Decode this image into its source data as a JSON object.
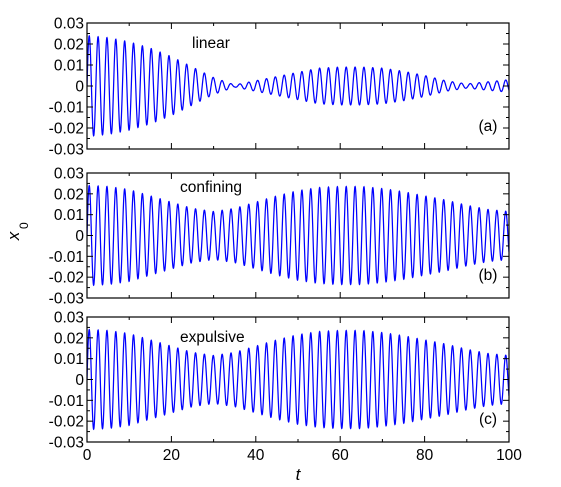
{
  "chart_data": [
    {
      "type": "line",
      "annotation": "linear",
      "panel_label": "(a)",
      "xlim": [
        0,
        100
      ],
      "ylim": [
        -0.03,
        0.03
      ],
      "x_ticks": [
        0,
        20,
        40,
        60,
        80,
        100
      ],
      "y_tick_labels": [
        "0.03",
        "0.02",
        "0.01",
        "0",
        "-0.01",
        "-0.02",
        "-0.03"
      ],
      "series": [
        {
          "color": "#0000ff",
          "signal": "oscillation",
          "carrier_period": 2.1,
          "envelope": {
            "t": [
              0,
              5,
              10,
              15,
              20,
              25,
              30,
              35,
              40,
              45,
              50,
              55,
              60,
              65,
              70,
              75,
              80,
              85,
              90,
              95,
              100
            ],
            "amplitude": [
              0.024,
              0.023,
              0.021,
              0.018,
              0.014,
              0.009,
              0.004,
              0.0005,
              0.0025,
              0.0045,
              0.0065,
              0.0085,
              0.009,
              0.009,
              0.0085,
              0.007,
              0.005,
              0.0025,
              0.001,
              0.002,
              0.003
            ]
          }
        }
      ]
    },
    {
      "type": "line",
      "annotation": "confining",
      "panel_label": "(b)",
      "xlim": [
        0,
        100
      ],
      "ylim": [
        -0.03,
        0.03
      ],
      "x_ticks": [
        0,
        20,
        40,
        60,
        80,
        100
      ],
      "y_tick_labels": [
        "0.03",
        "0.02",
        "0.01",
        "0",
        "-0.01",
        "-0.02",
        "-0.03"
      ],
      "series": [
        {
          "color": "#0000ff",
          "signal": "oscillation",
          "carrier_period": 2.1,
          "envelope": {
            "t": [
              0,
              5,
              10,
              15,
              20,
              25,
              30,
              35,
              40,
              45,
              50,
              55,
              60,
              65,
              70,
              75,
              80,
              85,
              90,
              95,
              100
            ],
            "amplitude": [
              0.024,
              0.0235,
              0.022,
              0.019,
              0.016,
              0.013,
              0.0115,
              0.013,
              0.016,
              0.019,
              0.0215,
              0.023,
              0.0235,
              0.0235,
              0.0225,
              0.021,
              0.019,
              0.017,
              0.0145,
              0.0125,
              0.0115
            ]
          }
        }
      ]
    },
    {
      "type": "line",
      "annotation": "expulsive",
      "panel_label": "(c)",
      "xlim": [
        0,
        100
      ],
      "ylim": [
        -0.03,
        0.03
      ],
      "x_ticks": [
        0,
        20,
        40,
        60,
        80,
        100
      ],
      "y_tick_labels": [
        "0.03",
        "0.02",
        "0.01",
        "0",
        "-0.01",
        "-0.02",
        "-0.03"
      ],
      "series": [
        {
          "color": "#0000ff",
          "signal": "oscillation",
          "carrier_period": 2.1,
          "envelope": {
            "t": [
              0,
              5,
              10,
              15,
              20,
              25,
              30,
              35,
              40,
              45,
              50,
              55,
              60,
              65,
              70,
              75,
              80,
              85,
              90,
              95,
              100
            ],
            "amplitude": [
              0.024,
              0.0235,
              0.022,
              0.019,
              0.016,
              0.013,
              0.0115,
              0.013,
              0.016,
              0.019,
              0.0215,
              0.023,
              0.0235,
              0.0235,
              0.0225,
              0.021,
              0.019,
              0.017,
              0.0145,
              0.0125,
              0.0115
            ]
          }
        }
      ]
    }
  ],
  "axes": {
    "xlabel": "t",
    "ylabel_main": "x",
    "ylabel_sub": "0"
  }
}
